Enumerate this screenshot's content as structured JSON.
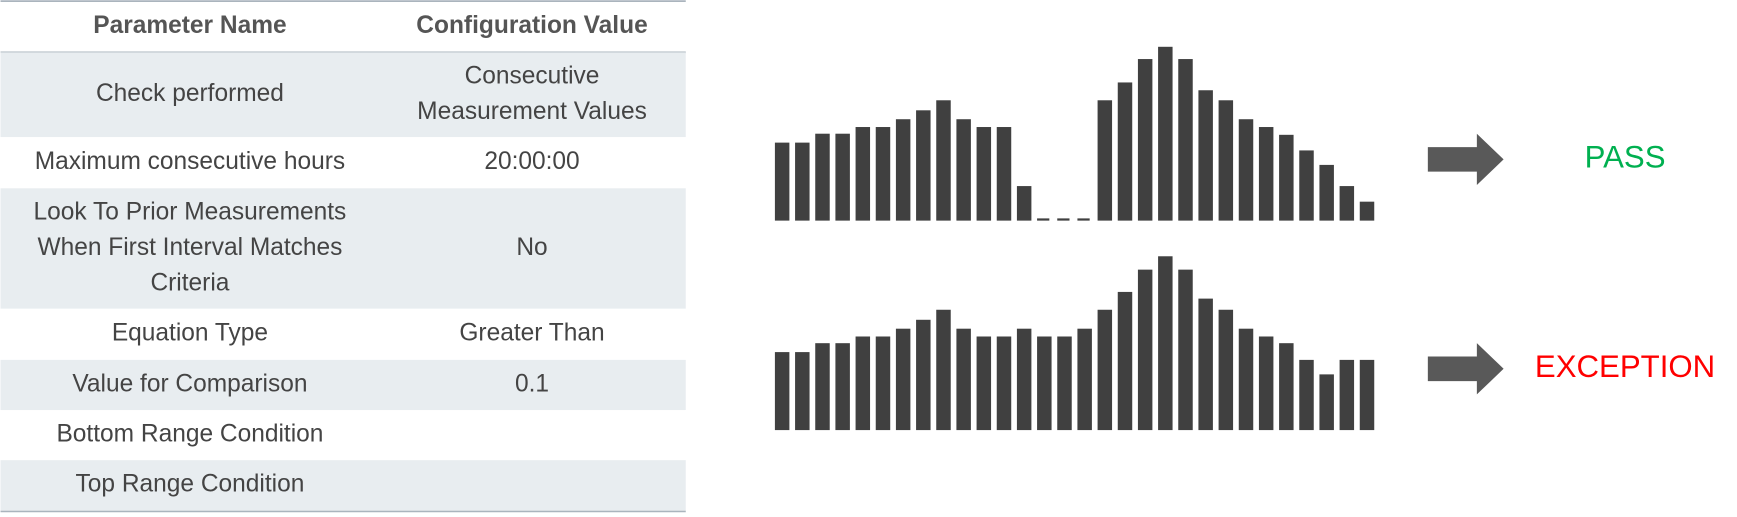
{
  "table": {
    "header": [
      "Parameter Name",
      "Configuration Value"
    ],
    "rows": [
      {
        "parameter": [
          "Check performed"
        ],
        "value": [
          "Consecutive",
          "Measurement Values"
        ]
      },
      {
        "parameter": [
          "Maximum consecutive hours"
        ],
        "value": [
          "20:00:00"
        ]
      },
      {
        "parameter": [
          "Look To Prior Measurements",
          "When First Interval Matches",
          "Criteria"
        ],
        "value": [
          "No"
        ]
      },
      {
        "parameter": [
          "Equation Type"
        ],
        "value": [
          "Greater Than"
        ]
      },
      {
        "parameter": [
          "Value for Comparison"
        ],
        "value": [
          "0.1"
        ]
      },
      {
        "parameter": [
          "Bottom Range Condition"
        ]
      },
      {
        "parameter": [
          "Top Range Condition"
        ]
      }
    ]
  },
  "outcomes": {
    "pass": "PASS",
    "exception": "EXCEPTION"
  }
}
